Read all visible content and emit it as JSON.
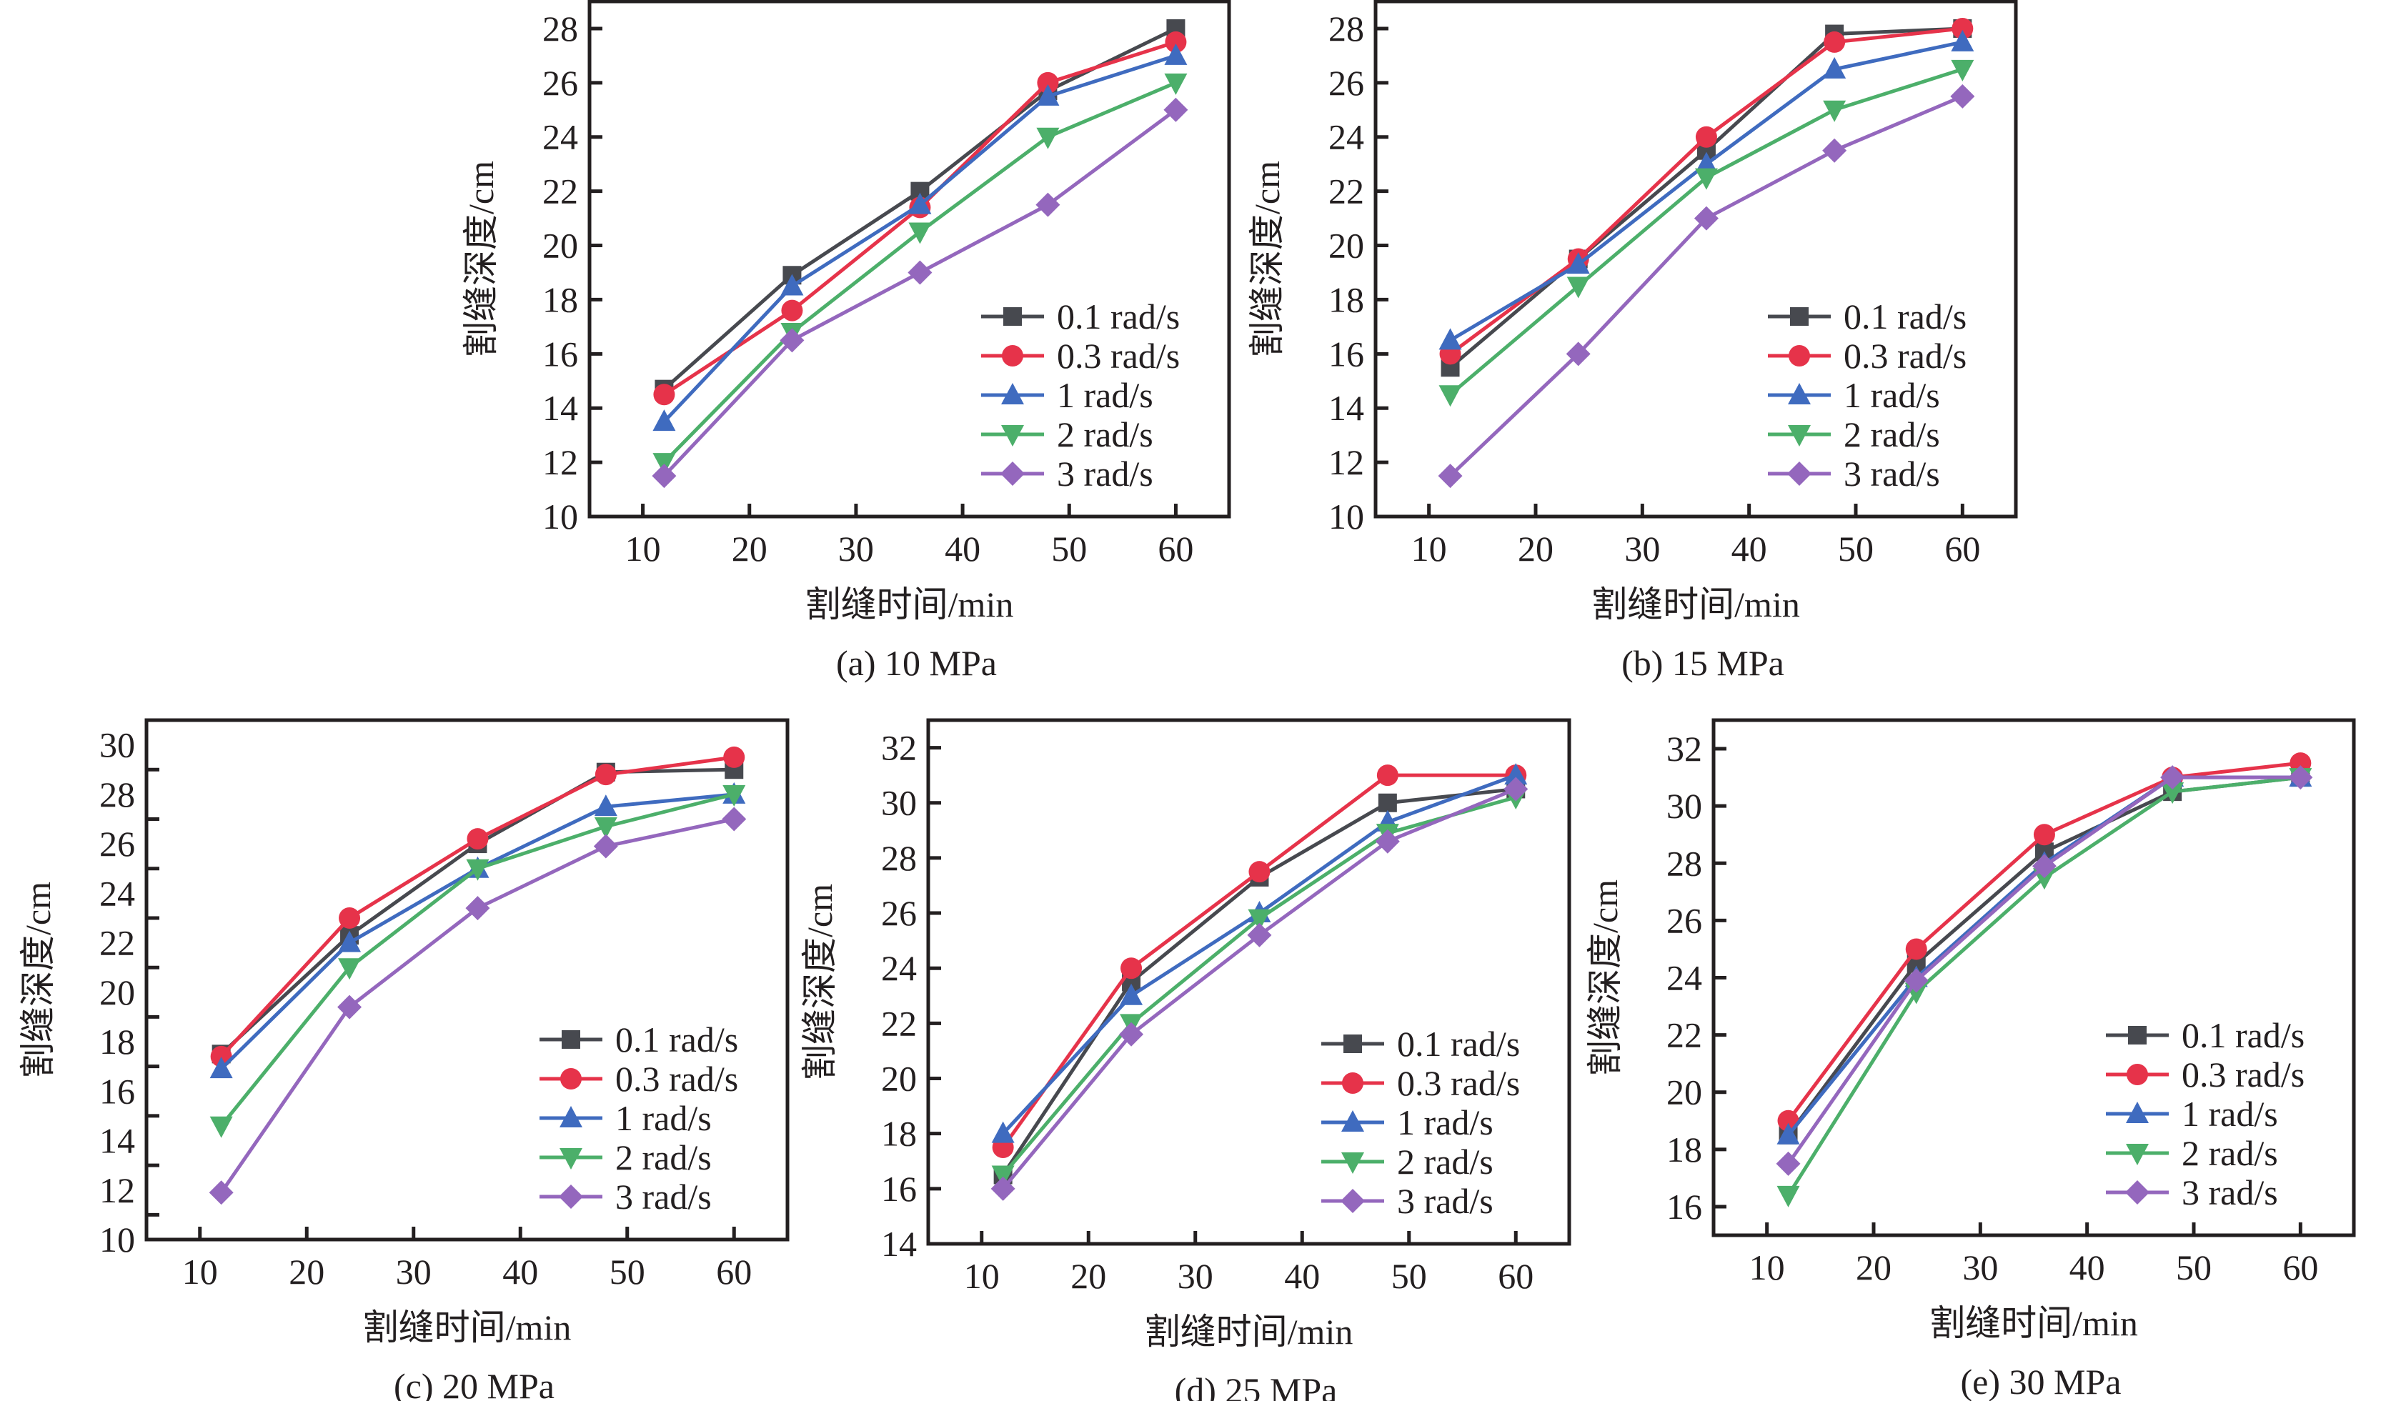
{
  "figure": {
    "colors": {
      "0.1 rad/s": "#47494f",
      "0.3 rad/s": "#e6334a",
      "1 rad/s": "#3f6bbf",
      "2 rad/s": "#4caf6a",
      "3 rad/s": "#9467bd"
    },
    "markers": {
      "0.1 rad/s": "square",
      "0.3 rad/s": "circle",
      "1 rad/s": "triangle-up",
      "2 rad/s": "triangle-down",
      "3 rad/s": "diamond"
    }
  },
  "chart_data": [
    {
      "id": "a",
      "type": "line",
      "title": "(a) 10 MPa",
      "xlabel": "割缝时间/min",
      "ylabel": "割缝深度/cm",
      "x": [
        12,
        24,
        36,
        48,
        60
      ],
      "xlim": [
        5,
        65
      ],
      "ylim": [
        10,
        29
      ],
      "xticks": [
        10,
        20,
        30,
        40,
        50,
        60
      ],
      "yticks": [
        10,
        12,
        14,
        16,
        18,
        20,
        22,
        24,
        26,
        28
      ],
      "legend_position": "lower-right",
      "grid": false,
      "series": [
        {
          "name": "0.1 rad/s",
          "values": [
            14.7,
            18.9,
            22.0,
            25.7,
            28.0
          ]
        },
        {
          "name": "0.3 rad/s",
          "values": [
            14.5,
            17.6,
            21.4,
            26.0,
            27.5
          ]
        },
        {
          "name": "1 rad/s",
          "values": [
            13.5,
            18.5,
            21.5,
            25.5,
            27.0
          ]
        },
        {
          "name": "2 rad/s",
          "values": [
            12.0,
            16.8,
            20.5,
            24.0,
            26.0
          ]
        },
        {
          "name": "3 rad/s",
          "values": [
            11.5,
            16.5,
            19.0,
            21.5,
            25.0
          ]
        }
      ]
    },
    {
      "id": "b",
      "type": "line",
      "title": "(b) 15 MPa",
      "xlabel": "割缝时间/min",
      "ylabel": "割缝深度/cm",
      "x": [
        12,
        24,
        36,
        48,
        60
      ],
      "xlim": [
        5,
        65
      ],
      "ylim": [
        10,
        29
      ],
      "xticks": [
        10,
        20,
        30,
        40,
        50,
        60
      ],
      "yticks": [
        10,
        12,
        14,
        16,
        18,
        20,
        22,
        24,
        26,
        28
      ],
      "legend_position": "lower-right",
      "grid": false,
      "series": [
        {
          "name": "0.1 rad/s",
          "values": [
            15.5,
            19.5,
            23.5,
            27.8,
            28.0
          ]
        },
        {
          "name": "0.3 rad/s",
          "values": [
            16.0,
            19.5,
            24.0,
            27.5,
            28.0
          ]
        },
        {
          "name": "1 rad/s",
          "values": [
            16.5,
            19.3,
            23.0,
            26.5,
            27.5
          ]
        },
        {
          "name": "2 rad/s",
          "values": [
            14.5,
            18.5,
            22.5,
            25.0,
            26.5
          ]
        },
        {
          "name": "3 rad/s",
          "values": [
            11.5,
            16.0,
            21.0,
            23.5,
            25.5
          ]
        }
      ]
    },
    {
      "id": "c",
      "type": "line",
      "title": "(c) 20 MPa",
      "xlabel": "割缝时间/min",
      "ylabel": "割缝深度/cm",
      "x": [
        12,
        24,
        36,
        48,
        60
      ],
      "xlim": [
        5,
        65
      ],
      "ylim": [
        10,
        31
      ],
      "xticks": [
        10,
        20,
        30,
        40,
        50,
        60
      ],
      "yticks": [
        10,
        12,
        14,
        16,
        18,
        20,
        22,
        24,
        26,
        28,
        30
      ],
      "legend_position": "lower-right",
      "grid": false,
      "series": [
        {
          "name": "0.1 rad/s",
          "values": [
            17.5,
            22.3,
            26.0,
            28.9,
            29.0
          ]
        },
        {
          "name": "0.3 rad/s",
          "values": [
            17.4,
            23.0,
            26.2,
            28.8,
            29.5
          ]
        },
        {
          "name": "1 rad/s",
          "values": [
            16.9,
            22.0,
            25.0,
            27.5,
            28.0
          ]
        },
        {
          "name": "2 rad/s",
          "values": [
            14.6,
            21.0,
            25.0,
            26.7,
            28.0
          ]
        },
        {
          "name": "3 rad/s",
          "values": [
            11.9,
            19.4,
            23.4,
            25.9,
            27.0
          ]
        }
      ]
    },
    {
      "id": "d",
      "type": "line",
      "title": "(d) 25 MPa",
      "xlabel": "割缝时间/min",
      "ylabel": "割缝深度/cm",
      "x": [
        12,
        24,
        36,
        48,
        60
      ],
      "xlim": [
        5,
        65
      ],
      "ylim": [
        14,
        33
      ],
      "xticks": [
        10,
        20,
        30,
        40,
        50,
        60
      ],
      "yticks": [
        14,
        16,
        18,
        20,
        22,
        24,
        26,
        28,
        30,
        32
      ],
      "legend_position": "lower-right",
      "grid": false,
      "series": [
        {
          "name": "0.1 rad/s",
          "values": [
            16.5,
            23.5,
            27.3,
            30.0,
            30.5
          ]
        },
        {
          "name": "0.3 rad/s",
          "values": [
            17.5,
            24.0,
            27.5,
            31.0,
            31.0
          ]
        },
        {
          "name": "1 rad/s",
          "values": [
            18.0,
            23.0,
            26.0,
            29.3,
            31.0
          ]
        },
        {
          "name": "2 rad/s",
          "values": [
            16.5,
            22.0,
            25.8,
            28.9,
            30.2
          ]
        },
        {
          "name": "3 rad/s",
          "values": [
            16.0,
            21.6,
            25.2,
            28.6,
            30.5
          ]
        }
      ]
    },
    {
      "id": "e",
      "type": "line",
      "title": "(e) 30 MPa",
      "xlabel": "割缝时间/min",
      "ylabel": "割缝深度/cm",
      "x": [
        12,
        24,
        36,
        48,
        60
      ],
      "xlim": [
        5,
        65
      ],
      "ylim": [
        15,
        33
      ],
      "xticks": [
        10,
        20,
        30,
        40,
        50,
        60
      ],
      "yticks": [
        16,
        18,
        20,
        22,
        24,
        26,
        28,
        30,
        32
      ],
      "legend_position": "lower-right",
      "grid": false,
      "series": [
        {
          "name": "0.1 rad/s",
          "values": [
            18.5,
            24.5,
            28.4,
            30.5,
            31.0
          ]
        },
        {
          "name": "0.3 rad/s",
          "values": [
            19.0,
            25.0,
            29.0,
            31.0,
            31.5
          ]
        },
        {
          "name": "1 rad/s",
          "values": [
            18.5,
            24.0,
            28.0,
            31.0,
            31.0
          ]
        },
        {
          "name": "2 rad/s",
          "values": [
            16.4,
            23.5,
            27.5,
            30.5,
            31.0
          ]
        },
        {
          "name": "3 rad/s",
          "values": [
            17.5,
            23.9,
            27.9,
            31.0,
            31.0
          ]
        }
      ]
    }
  ]
}
